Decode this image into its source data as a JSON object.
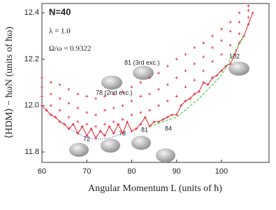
{
  "chart_data": {
    "type": "scatter",
    "title": "N=40",
    "subtitle": [
      "λ = 1.0",
      "Ω/ω = 0.9322"
    ],
    "x_label": "Angular Momentum L (units of ħ)",
    "y_label": "⟨HDM⟩ − ħωN (units of ħω)",
    "xlim": [
      60,
      110.6
    ],
    "ylim": [
      11.755,
      12.44
    ],
    "xticks": [
      60,
      70,
      80,
      90,
      100
    ],
    "yticks": [
      11.8,
      {
        "value": 12,
        "label": "12.0"
      },
      12.2,
      12.4
    ],
    "annotations": [
      "81 (3rd exc.)",
      "78 (2nd exc.)",
      "102",
      "72",
      "78",
      "81",
      "84"
    ],
    "series": [
      {
        "color": "#e3202a",
        "style": "line",
        "x": [
          60,
          61,
          62,
          63,
          64,
          65,
          66,
          67,
          68,
          69,
          70,
          71,
          72,
          73,
          74,
          75,
          76,
          77,
          78,
          79,
          80,
          81,
          82,
          83,
          84,
          85,
          86,
          87,
          88,
          89,
          90,
          91,
          92,
          93,
          94,
          95,
          96,
          97,
          98,
          99,
          100,
          101,
          102,
          103,
          104,
          105,
          106,
          107
        ],
        "values": [
          12.0,
          11.98,
          11.96,
          11.95,
          11.93,
          11.92,
          11.9,
          11.92,
          11.88,
          11.91,
          11.87,
          11.9,
          11.86,
          11.89,
          11.87,
          11.91,
          11.88,
          11.92,
          11.88,
          11.93,
          11.89,
          11.9,
          11.92,
          11.95,
          11.91,
          11.93,
          11.93,
          11.94,
          11.95,
          11.96,
          11.96,
          12.0,
          12.02,
          12.03,
          12.05,
          12.06,
          12.1,
          12.09,
          12.12,
          12.13,
          12.15,
          12.17,
          12.18,
          12.22,
          12.27,
          12.3,
          12.35,
          12.4
        ]
      },
      {
        "color": "#e3202a",
        "style": "points",
        "x": [
          60,
          60,
          60,
          62,
          62,
          62,
          64,
          64,
          64,
          66,
          66,
          66,
          68,
          68,
          68,
          70,
          70,
          70,
          72,
          72,
          72,
          74,
          74,
          74,
          76,
          76,
          76,
          78,
          78,
          78,
          80,
          80,
          80,
          82,
          82,
          82,
          84,
          84,
          84,
          86,
          86,
          86,
          88,
          88,
          88,
          90,
          90,
          90,
          92,
          92,
          92,
          94,
          94,
          94,
          96,
          96,
          96,
          98,
          98,
          98,
          100,
          100,
          100,
          102,
          102,
          102,
          104,
          104,
          104,
          106,
          106,
          106
        ],
        "values": [
          12.04,
          12.08,
          12.12,
          12.0,
          12.05,
          12.1,
          11.98,
          12.03,
          12.09,
          11.95,
          12.01,
          12.07,
          11.93,
          11.99,
          12.05,
          11.92,
          11.97,
          12.04,
          11.91,
          11.96,
          12.03,
          11.92,
          11.98,
          12.04,
          11.93,
          11.99,
          12.05,
          11.94,
          12.0,
          12.06,
          11.96,
          12.02,
          12.08,
          11.97,
          12.04,
          12.1,
          11.98,
          12.05,
          12.12,
          12.0,
          12.07,
          12.14,
          12.02,
          12.09,
          12.17,
          12.04,
          12.12,
          12.2,
          12.08,
          12.15,
          12.22,
          12.11,
          12.18,
          12.25,
          12.15,
          12.21,
          12.27,
          12.19,
          12.25,
          12.3,
          12.22,
          12.28,
          12.33,
          12.26,
          12.32,
          12.36,
          12.31,
          12.36,
          12.4,
          12.38,
          12.41,
          12.43
        ]
      },
      {
        "color": "#33c833",
        "style": "dashed",
        "x": [
          84,
          90,
          95,
          100,
          105
        ],
        "values": [
          11.91,
          11.95,
          12.03,
          12.13,
          12.3
        ]
      },
      {
        "color": "#3333cc",
        "style": "dotted",
        "x": [
          66,
          70,
          72,
          75,
          78
        ],
        "values": [
          11.9,
          11.86,
          11.855,
          11.86,
          11.88
        ]
      }
    ]
  }
}
